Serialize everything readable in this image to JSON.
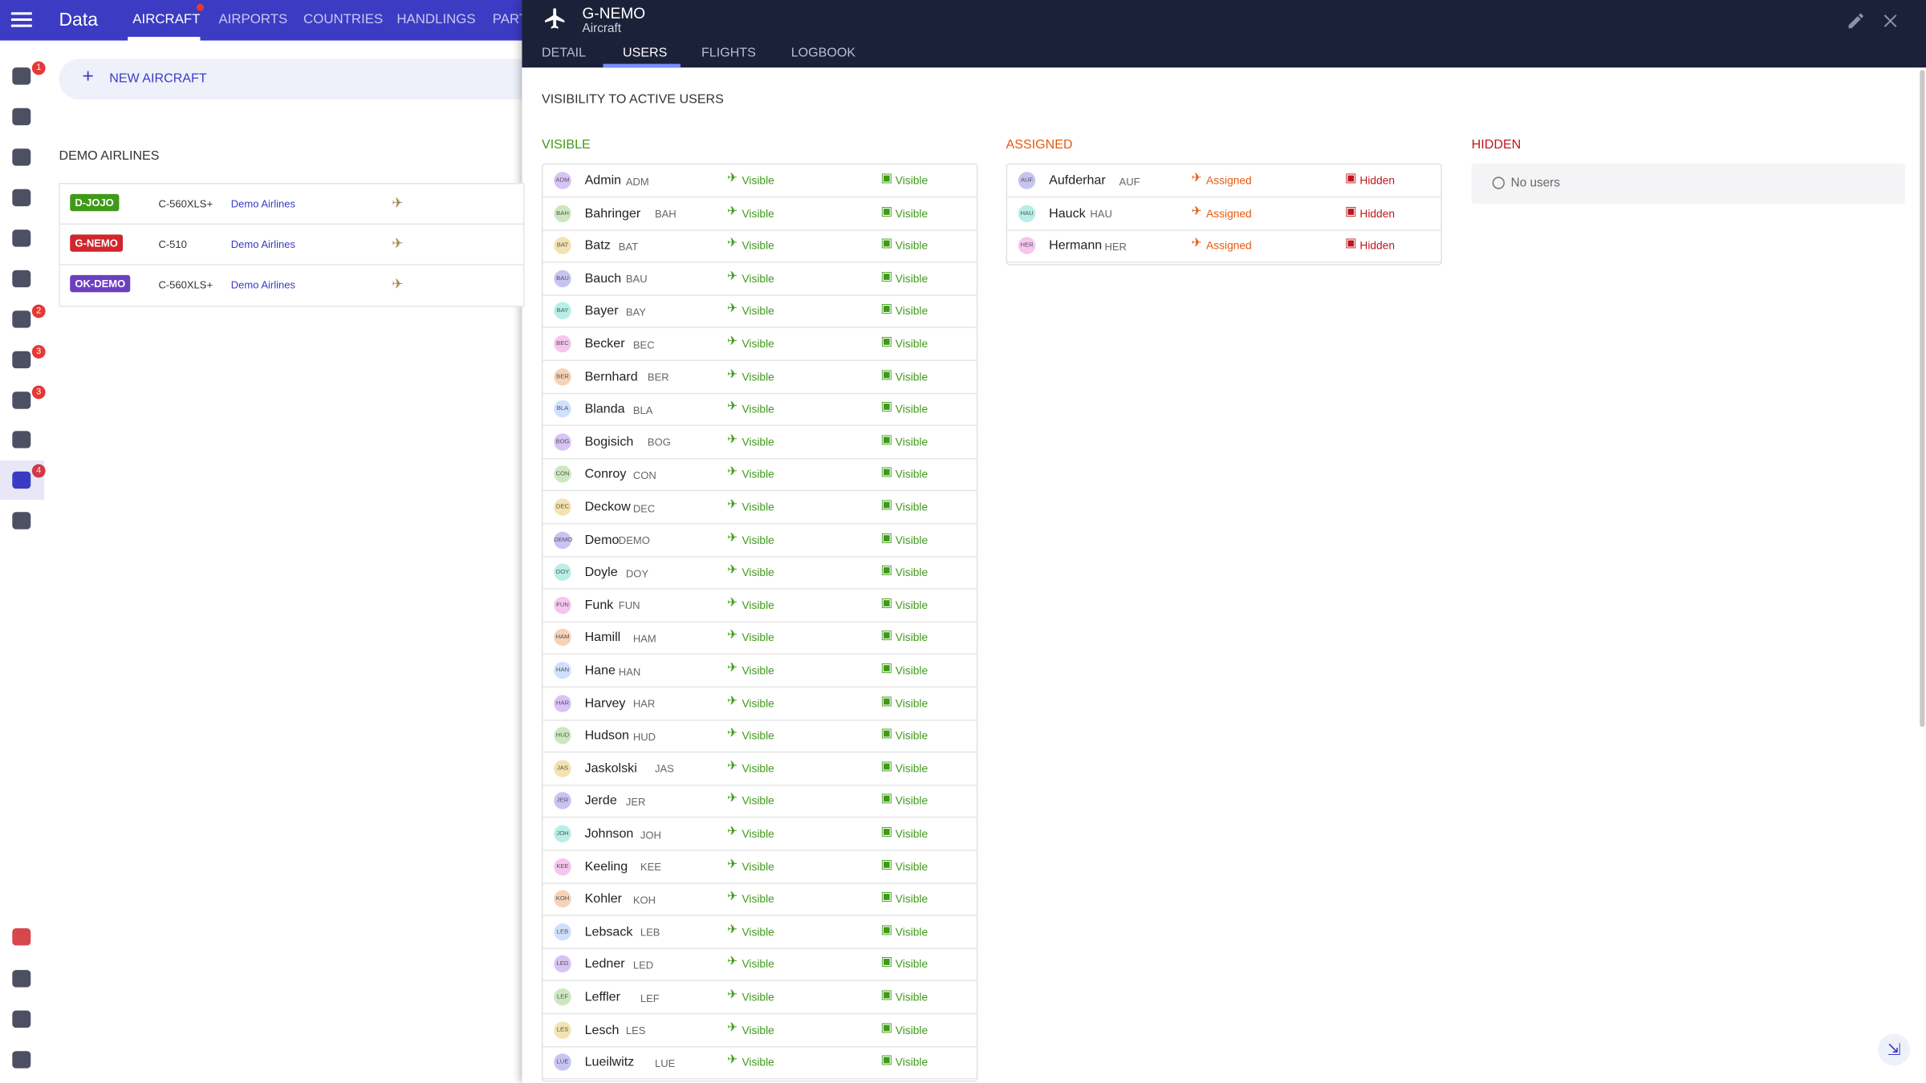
{
  "nav": {
    "title": "Data",
    "tabs": [
      "AIRCRAFT",
      "AIRPORTS",
      "COUNTRIES",
      "HANDLINGS",
      "PART"
    ],
    "badges": [
      "1",
      "2",
      "3",
      "3",
      "4"
    ]
  },
  "list": {
    "new_button": "NEW AIRCRAFT",
    "group": "DEMO AIRLINES",
    "aircraft": [
      {
        "reg": "D-JOJO",
        "type": "C-560XLS+",
        "operator": "Demo Airlines",
        "color": "#3f9a18"
      },
      {
        "reg": "G-NEMO",
        "type": "C-510",
        "operator": "Demo Airlines",
        "color": "#d0262c"
      },
      {
        "reg": "OK-DEMO",
        "type": "C-560XLS+",
        "operator": "Demo Airlines",
        "color": "#6d3fc0"
      }
    ]
  },
  "panel": {
    "title": "G-NEMO",
    "subtitle": "Aircraft",
    "tabs": [
      "DETAIL",
      "USERS",
      "FLIGHTS",
      "LOGBOOK"
    ],
    "section": "VISIBILITY TO ACTIVE USERS",
    "columns": [
      {
        "heading": "VISIBLE",
        "color": "#3f9a18",
        "users": [
          {
            "name": "Admin",
            "code": "ADM",
            "statuses": [
              "Visible",
              "Visible"
            ]
          },
          {
            "name": "Bahringer",
            "code": "BAH",
            "statuses": [
              "Visible",
              "Visible"
            ]
          },
          {
            "name": "Batz",
            "code": "BAT",
            "statuses": [
              "Visible",
              "Visible"
            ]
          },
          {
            "name": "Bauch",
            "code": "BAU",
            "statuses": [
              "Visible",
              "Visible"
            ]
          },
          {
            "name": "Bayer",
            "code": "BAY",
            "statuses": [
              "Visible",
              "Visible"
            ]
          },
          {
            "name": "Becker",
            "code": "BEC",
            "statuses": [
              "Visible",
              "Visible"
            ]
          },
          {
            "name": "Bernhard",
            "code": "BER",
            "statuses": [
              "Visible",
              "Visible"
            ]
          },
          {
            "name": "Blanda",
            "code": "BLA",
            "statuses": [
              "Visible",
              "Visible"
            ]
          },
          {
            "name": "Bogisich",
            "code": "BOG",
            "statuses": [
              "Visible",
              "Visible"
            ]
          },
          {
            "name": "Conroy",
            "code": "CON",
            "statuses": [
              "Visible",
              "Visible"
            ]
          },
          {
            "name": "Deckow",
            "code": "DEC",
            "statuses": [
              "Visible",
              "Visible"
            ]
          },
          {
            "name": "Demo",
            "code": "DEMO",
            "statuses": [
              "Visible",
              "Visible"
            ]
          },
          {
            "name": "Doyle",
            "code": "DOY",
            "statuses": [
              "Visible",
              "Visible"
            ]
          },
          {
            "name": "Funk",
            "code": "FUN",
            "statuses": [
              "Visible",
              "Visible"
            ]
          },
          {
            "name": "Hamill",
            "code": "HAM",
            "statuses": [
              "Visible",
              "Visible"
            ]
          },
          {
            "name": "Hane",
            "code": "HAN",
            "statuses": [
              "Visible",
              "Visible"
            ]
          },
          {
            "name": "Harvey",
            "code": "HAR",
            "statuses": [
              "Visible",
              "Visible"
            ]
          },
          {
            "name": "Hudson",
            "code": "HUD",
            "statuses": [
              "Visible",
              "Visible"
            ]
          },
          {
            "name": "Jaskolski",
            "code": "JAS",
            "statuses": [
              "Visible",
              "Visible"
            ]
          },
          {
            "name": "Jerde",
            "code": "JER",
            "statuses": [
              "Visible",
              "Visible"
            ]
          },
          {
            "name": "Johnson",
            "code": "JOH",
            "statuses": [
              "Visible",
              "Visible"
            ]
          },
          {
            "name": "Keeling",
            "code": "KEE",
            "statuses": [
              "Visible",
              "Visible"
            ]
          },
          {
            "name": "Kohler",
            "code": "KOH",
            "statuses": [
              "Visible",
              "Visible"
            ]
          },
          {
            "name": "Lebsack",
            "code": "LEB",
            "statuses": [
              "Visible",
              "Visible"
            ]
          },
          {
            "name": "Ledner",
            "code": "LED",
            "statuses": [
              "Visible",
              "Visible"
            ]
          },
          {
            "name": "Leffler",
            "code": "LEF",
            "statuses": [
              "Visible",
              "Visible"
            ]
          },
          {
            "name": "Lesch",
            "code": "LES",
            "statuses": [
              "Visible",
              "Visible"
            ]
          },
          {
            "name": "Lueilwitz",
            "code": "LUE",
            "statuses": [
              "Visible",
              "Visible"
            ]
          }
        ]
      },
      {
        "heading": "ASSIGNED",
        "color": "#e8590c",
        "users": [
          {
            "name": "Aufderhar",
            "code": "AUF",
            "statuses": [
              "Assigned",
              "Hidden"
            ]
          },
          {
            "name": "Hauck",
            "code": "HAU",
            "statuses": [
              "Assigned",
              "Hidden"
            ]
          },
          {
            "name": "Hermann",
            "code": "HER",
            "statuses": [
              "Assigned",
              "Hidden"
            ]
          }
        ]
      },
      {
        "heading": "HIDDEN",
        "color": "#c0161c",
        "users": [],
        "empty": "No users"
      }
    ]
  }
}
